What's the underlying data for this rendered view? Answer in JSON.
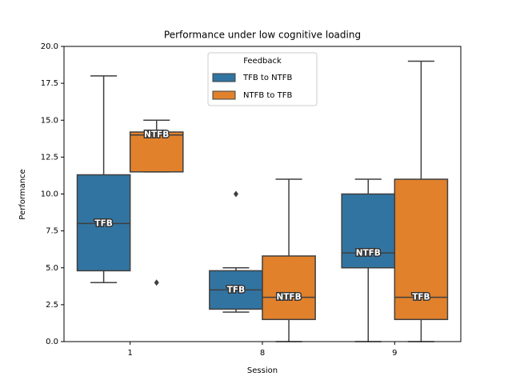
{
  "chart_data": {
    "type": "box",
    "title": "Performance under low cognitive loading",
    "x_label": "Session",
    "y_label": "Performance",
    "categories": [
      "1",
      "8",
      "9"
    ],
    "ylim": [
      0,
      20
    ],
    "yticks": [
      {
        "value": 0,
        "label": "0.0"
      },
      2.5,
      {
        "value": 5,
        "label": "5.0"
      },
      7.5,
      {
        "value": 10,
        "label": "10.0"
      },
      12.5,
      {
        "value": 15,
        "label": "15.0"
      },
      17.5,
      {
        "value": 20,
        "label": "20.0"
      }
    ],
    "legend_title": "Feedback",
    "legend": "upper center",
    "series": [
      {
        "name": "TFB to NTFB",
        "color": "#3274a1",
        "boxes": [
          {
            "whislo": 4,
            "q1": 4.8,
            "med": 8,
            "q3": 11.3,
            "whishi": 18,
            "fliers": []
          },
          {
            "whislo": 2,
            "q1": 2.2,
            "med": 3.5,
            "q3": 4.8,
            "whishi": 5,
            "fliers": [
              10
            ]
          },
          {
            "whislo": 0,
            "q1": 5,
            "med": 6,
            "q3": 10,
            "whishi": 11,
            "fliers": []
          }
        ],
        "box_labels": [
          "TFB",
          "TFB",
          "NTFB"
        ]
      },
      {
        "name": "NTFB to TFB",
        "color": "#e1812c",
        "boxes": [
          {
            "whislo": 11.5,
            "q1": 11.5,
            "med": 14,
            "q3": 14.2,
            "whishi": 15,
            "fliers": [
              4
            ]
          },
          {
            "whislo": 0,
            "q1": 1.5,
            "med": 3,
            "q3": 5.8,
            "whishi": 11,
            "fliers": []
          },
          {
            "whislo": 0,
            "q1": 1.5,
            "med": 3,
            "q3": 11,
            "whishi": 19,
            "fliers": []
          }
        ],
        "box_labels": [
          "NTFB",
          "NTFB",
          "TFB"
        ]
      }
    ]
  }
}
